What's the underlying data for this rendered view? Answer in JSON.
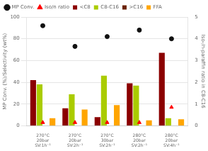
{
  "chart_data": {
    "type": "bar",
    "categories": [
      [
        "270°C",
        "20bar",
        "SV:1h⁻¹"
      ],
      [
        "270°C",
        "20bar",
        "SV:2h⁻¹"
      ],
      [
        "270°C",
        "30bar",
        "SV:2h⁻¹"
      ],
      [
        "280°C",
        "20bar",
        "SV:2h⁻¹"
      ],
      [
        "280°C",
        "20bar",
        "SV:4h⁻¹"
      ]
    ],
    "series": [
      {
        "name": "<C8",
        "type": "bar",
        "color": "#8B0000",
        "values": [
          42,
          16,
          8,
          39,
          67
        ]
      },
      {
        "name": "C8-C16",
        "type": "bar",
        "color": "#AACC00",
        "values": [
          38,
          29,
          46,
          37,
          7
        ]
      },
      {
        "name": ">C16",
        "type": "bar",
        "color": "#6B2300",
        "values": [
          0,
          0,
          0,
          0,
          0
        ]
      },
      {
        "name": "FFA",
        "type": "bar",
        "color": "#FFA500",
        "values": [
          7,
          15,
          19,
          5,
          6
        ]
      },
      {
        "name": "MP Conv.",
        "type": "scatter",
        "marker": "circle",
        "color": "#111111",
        "values": [
          92,
          73,
          82,
          88,
          80
        ]
      },
      {
        "name": "Iso/n ratio",
        "type": "scatter",
        "marker": "triangle",
        "color": "#FF0000",
        "axis": "y2",
        "values": [
          0.15,
          0.15,
          0.15,
          0.15,
          0.85
        ]
      }
    ],
    "ylabel": "MP Conv. (%)/Selectivity (wt%)",
    "y2label": "Iso-/n-paraffin ratio in C8-C16",
    "ylim": [
      0,
      100
    ],
    "yticks": [
      0,
      20,
      40,
      60,
      80,
      100
    ],
    "y2lim": [
      0,
      5
    ],
    "y2ticks": [
      0,
      1,
      2,
      3,
      4,
      5
    ],
    "grid": true,
    "legend": "upper left"
  }
}
